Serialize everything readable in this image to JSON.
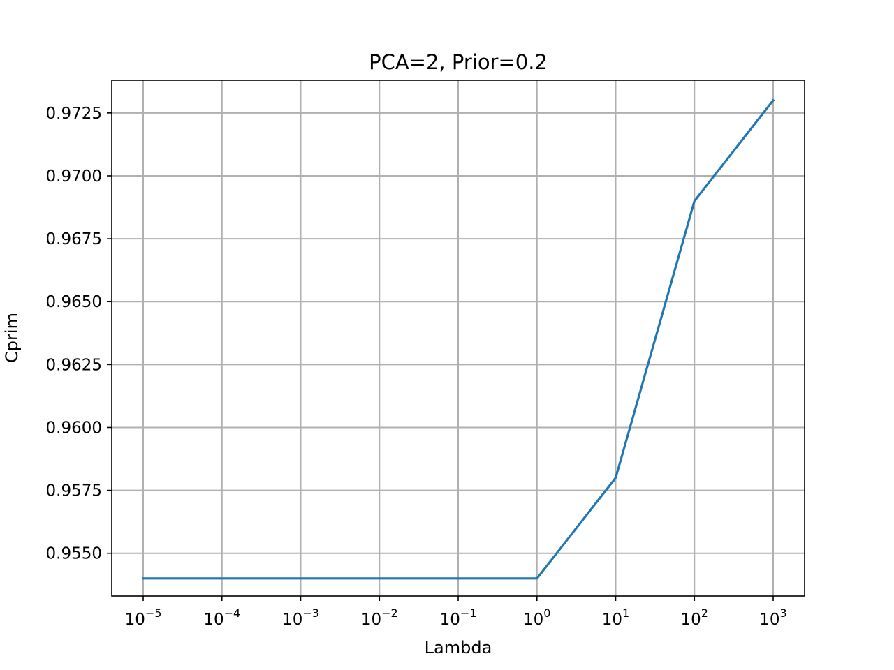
{
  "chart_data": {
    "type": "line",
    "title": "PCA=2, Prior=0.2",
    "xlabel": "Lambda",
    "ylabel": "Cprim",
    "x_scale": "log",
    "x": [
      1e-05,
      0.0001,
      0.001,
      0.01,
      0.1,
      1,
      10,
      100,
      1000
    ],
    "x_tick_exponents": [
      "−5",
      "−4",
      "−3",
      "−2",
      "−1",
      "0",
      "1",
      "2",
      "3"
    ],
    "x_tick_base": "10",
    "y_ticks": [
      "0.9550",
      "0.9575",
      "0.9600",
      "0.9625",
      "0.9650",
      "0.9675",
      "0.9700",
      "0.9725"
    ],
    "ylim": [
      0.9533,
      0.9738
    ],
    "grid": true,
    "series": [
      {
        "color": "#1f77b4",
        "values": [
          0.954,
          0.954,
          0.954,
          0.954,
          0.954,
          0.954,
          0.958,
          0.969,
          0.973
        ]
      }
    ]
  }
}
